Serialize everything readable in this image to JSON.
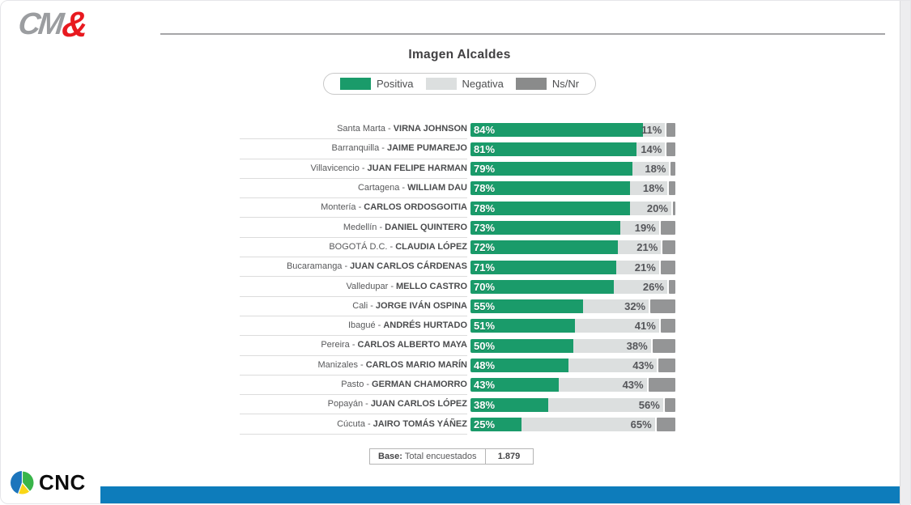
{
  "header": {
    "logo_cm": "CM",
    "logo_amp": "&"
  },
  "chart_data": {
    "type": "bar",
    "stacked": true,
    "orientation": "horizontal",
    "title": "Imagen Alcaldes",
    "value_suffix": "%",
    "label_separator": " - ",
    "legend_position": "top",
    "legend": [
      {
        "label": "Positiva",
        "color": "#1a9b6a"
      },
      {
        "label": "Negativa",
        "color": "#dcdfdf"
      },
      {
        "label": "Ns/Nr",
        "color": "#8a8b8b"
      }
    ],
    "categories": [
      {
        "city": "Santa Marta",
        "mayor": "VIRNA JOHNSON"
      },
      {
        "city": "Barranquilla",
        "mayor": "JAIME PUMAREJO"
      },
      {
        "city": "Villavicencio",
        "mayor": "JUAN FELIPE HARMAN"
      },
      {
        "city": "Cartagena",
        "mayor": "WILLIAM DAU"
      },
      {
        "city": "Montería",
        "mayor": "CARLOS ORDOSGOITIA"
      },
      {
        "city": "Medellín",
        "mayor": "DANIEL QUINTERO"
      },
      {
        "city": "BOGOTÁ D.C.",
        "mayor": "CLAUDIA LÓPEZ"
      },
      {
        "city": "Bucaramanga",
        "mayor": "JUAN CARLOS CÁRDENAS"
      },
      {
        "city": "Valledupar",
        "mayor": "MELLO CASTRO"
      },
      {
        "city": "Cali",
        "mayor": "JORGE IVÁN OSPINA"
      },
      {
        "city": "Ibagué",
        "mayor": "ANDRÉS HURTADO"
      },
      {
        "city": "Pereira",
        "mayor": "CARLOS ALBERTO MAYA"
      },
      {
        "city": "Manizales",
        "mayor": "CARLOS MARIO MARÍN"
      },
      {
        "city": "Pasto",
        "mayor": "GERMAN CHAMORRO"
      },
      {
        "city": "Popayán",
        "mayor": "JUAN CARLOS LÓPEZ"
      },
      {
        "city": "Cúcuta",
        "mayor": "JAIRO TOMÁS YÁÑEZ"
      }
    ],
    "series": [
      {
        "name": "Positiva",
        "values": [
          84,
          81,
          79,
          78,
          78,
          73,
          72,
          71,
          70,
          55,
          51,
          50,
          48,
          43,
          38,
          25
        ]
      },
      {
        "name": "Negativa",
        "values": [
          11,
          14,
          18,
          18,
          20,
          19,
          21,
          21,
          26,
          32,
          41,
          38,
          43,
          43,
          56,
          65
        ]
      },
      {
        "name": "Ns/Nr",
        "values": [
          5,
          5,
          3,
          4,
          2,
          8,
          7,
          8,
          4,
          13,
          8,
          12,
          9,
          14,
          6,
          10
        ]
      }
    ],
    "xlim": [
      0,
      100
    ]
  },
  "footer": {
    "base_label": "Base:",
    "base_text": " Total encuestados",
    "base_value": "1.879",
    "cnc_label": "CNC"
  },
  "colors": {
    "positive": "#1a9b6a",
    "negative": "#dcdfdf",
    "nsnr": "#949596",
    "bottom_bar": "#0d7cbb",
    "logo_red": "#e8191f",
    "logo_gray": "#9b9da0"
  }
}
